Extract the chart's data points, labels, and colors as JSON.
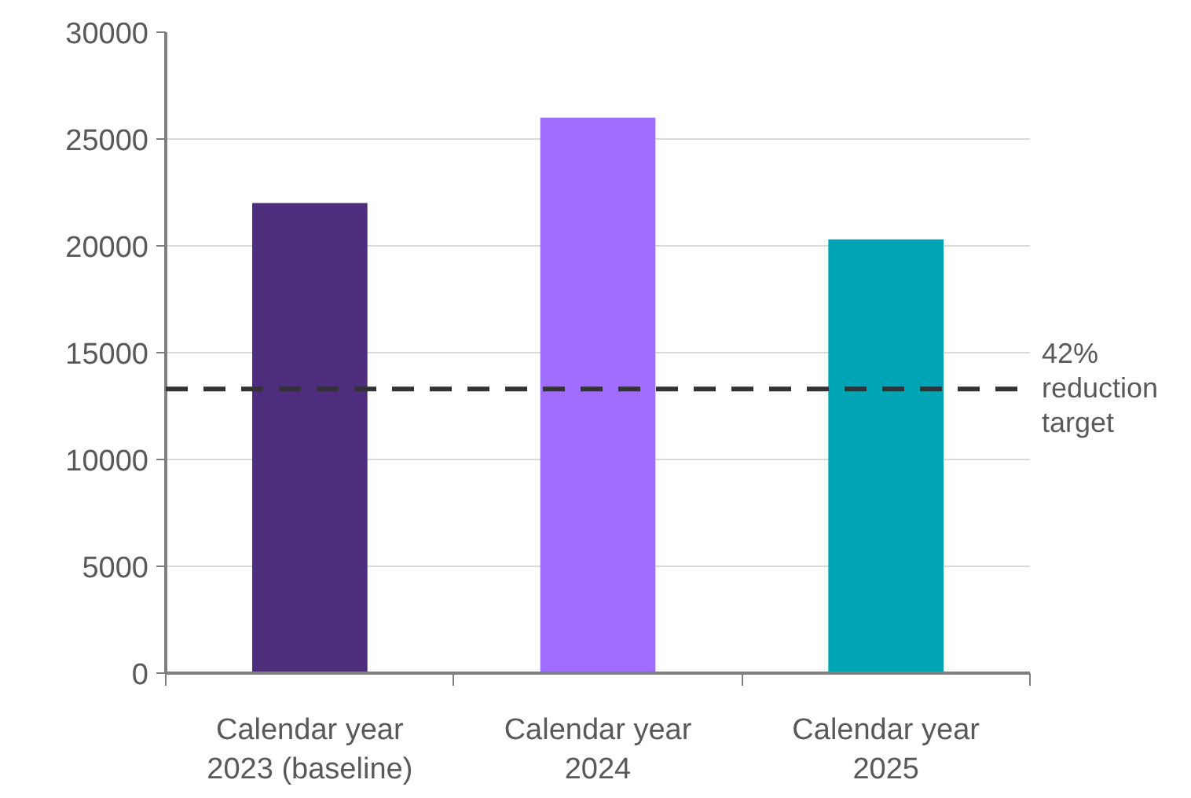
{
  "chart_data": {
    "type": "bar",
    "categories": [
      "Calendar year\n2023 (baseline)",
      "Calendar year\n2024",
      "Calendar year\n2025"
    ],
    "values": [
      22000,
      26000,
      20300
    ],
    "colors": [
      "#4e2d7c",
      "#a06eff",
      "#00a5b5"
    ],
    "ylim": [
      0,
      30000
    ],
    "yticks": [
      0,
      5000,
      10000,
      15000,
      20000,
      25000,
      30000
    ],
    "grid": "y",
    "ref_lines": [
      {
        "axis": "y",
        "value": 13300,
        "label": "42%\nreduction\ntarget",
        "color": "#333333",
        "line_style": "dashed"
      }
    ]
  }
}
